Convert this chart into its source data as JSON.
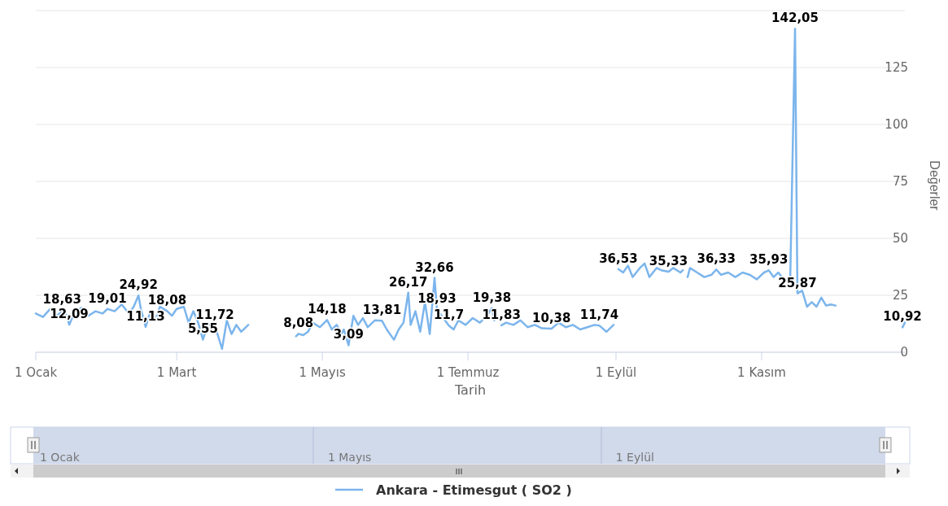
{
  "chart_data": {
    "type": "line",
    "xlabel": "Tarih",
    "ylabel": "Değerler",
    "grid": "y",
    "legend": "bottom",
    "xlim": [
      "--01-01",
      "--12-31"
    ],
    "xticks": [
      {
        "value": "--01-01",
        "label": "1 Ocak"
      },
      {
        "value": "--03-01",
        "label": "1 Mart"
      },
      {
        "value": "--05-01",
        "label": "1 Mayıs"
      },
      {
        "value": "--07-01",
        "label": "1 Temmuz"
      },
      {
        "value": "--09-01",
        "label": "1 Eylül"
      },
      {
        "value": "--11-01",
        "label": "1 Kasım"
      }
    ],
    "ylim": [
      0,
      150
    ],
    "yticks": [
      0,
      25,
      50,
      75,
      100,
      125,
      {
        "value": 150,
        "label": null
      }
    ],
    "annotations": [
      "1 Ocak",
      "1 Mayıs",
      "1 Eylül"
    ],
    "x": [
      "--01-01",
      "--01-04",
      "--01-07",
      "--01-10",
      "--01-12",
      "--01-14",
      "--01-15",
      "--01-17",
      "--01-20",
      "--01-23",
      "--01-26",
      "--01-29",
      "--01-31",
      "--02-03",
      "--02-06",
      "--02-09",
      "--02-11",
      "--02-13",
      "--02-14",
      "--02-16",
      "--02-18",
      "--02-20",
      "--02-22",
      "--02-25",
      "--02-27",
      "--03-01",
      "--03-04",
      "--03-06",
      "--03-08",
      "--03-10",
      "--03-12",
      "--03-14",
      "--03-17",
      "--03-20",
      "--03-22",
      "--03-24",
      "--03-26",
      "--03-28",
      "--03-31",
      "--04-10",
      "--04-20",
      "--04-21",
      "--04-23",
      "--04-25",
      "--04-27",
      "--04-30",
      "--05-03",
      "--05-05",
      "--05-07",
      "--05-09",
      "--05-10",
      "--05-12",
      "--05-14",
      "--05-16",
      "--05-18",
      "--05-20",
      "--05-23",
      "--05-26",
      "--05-28",
      "--05-31",
      "--06-02",
      "--06-04",
      "--06-06",
      "--06-07",
      "--06-09",
      "--06-11",
      "--06-13",
      "--06-15",
      "--06-17",
      "--06-18",
      "--06-20",
      "--06-23",
      "--06-25",
      "--06-27",
      "--06-30",
      "--07-03",
      "--07-06",
      "--07-09",
      "--07-11",
      "--07-12",
      "--07-13",
      "--07-15",
      "--07-17",
      "--07-20",
      "--07-23",
      "--07-26",
      "--07-29",
      "--08-01",
      "--08-05",
      "--08-08",
      "--08-11",
      "--08-14",
      "--08-17",
      "--08-20",
      "--08-23",
      "--08-25",
      "--08-28",
      "--08-31",
      "--09-01",
      "--09-02",
      "--09-04",
      "--09-06",
      "--09-08",
      "--09-11",
      "--09-13",
      "--09-15",
      "--09-18",
      "--09-20",
      "--09-23",
      "--09-25",
      "--09-28",
      "--09-29",
      "--09-30",
      "--10-01",
      "--10-02",
      "--10-05",
      "--10-08",
      "--10-11",
      "--10-13",
      "--10-15",
      "--10-18",
      "--10-21",
      "--10-24",
      "--10-27",
      "--10-30",
      "--11-02",
      "--11-04",
      "--11-06",
      "--11-08",
      "--11-11",
      "--11-13",
      "--11-15",
      "--11-16",
      "--11-18",
      "--11-20",
      "--11-22",
      "--11-24",
      "--11-26",
      "--11-28",
      "--11-30",
      "--12-02",
      "--12-10",
      "--12-30",
      "--12-31"
    ],
    "series": [
      {
        "name": "Ankara - Etimesgut ( SO2 )",
        "color": "#7cb5ec",
        "values": [
          17,
          15.5,
          19,
          16,
          18.63,
          16,
          12.09,
          17,
          19.5,
          16,
          18,
          17,
          19.01,
          18,
          21,
          17,
          20,
          24.92,
          19,
          11.13,
          18,
          14,
          20,
          18.08,
          16,
          19,
          20,
          13,
          18,
          13,
          5.55,
          12,
          11.72,
          1.5,
          14,
          8,
          12,
          9,
          12,
          null,
          7,
          8.08,
          7.5,
          9,
          13,
          11,
          14.18,
          10,
          12,
          8,
          10,
          3.09,
          16,
          12,
          15,
          11,
          14,
          13.81,
          10,
          5.5,
          10,
          13,
          26.17,
          12,
          18,
          9,
          22,
          8,
          32.66,
          18.93,
          16,
          11.7,
          10,
          14,
          12,
          15,
          13,
          16,
          19.38,
          14,
          null,
          11.83,
          13,
          12,
          14,
          11,
          12,
          10.5,
          10.38,
          13,
          11,
          12,
          10,
          11,
          12,
          11.74,
          9,
          12,
          null,
          36.53,
          35,
          38,
          33,
          37,
          39,
          33,
          37,
          36,
          35.33,
          37,
          35,
          36,
          null,
          33,
          37,
          35,
          33,
          34,
          36.33,
          34,
          35,
          33,
          35,
          34,
          32,
          35,
          35.93,
          33,
          35,
          31,
          33,
          142.05,
          25.87,
          27,
          20,
          22,
          20,
          24,
          20.5,
          21,
          20.5,
          null,
          10.92,
          13
        ],
        "value_labels": [
          null,
          null,
          null,
          null,
          "18,63",
          null,
          "12,09",
          null,
          null,
          null,
          null,
          null,
          "19,01",
          null,
          null,
          null,
          null,
          "24,92",
          null,
          "11,13",
          null,
          null,
          null,
          "18,08",
          null,
          null,
          null,
          null,
          null,
          null,
          "5,55",
          null,
          "11,72",
          null,
          null,
          null,
          null,
          null,
          null,
          null,
          null,
          "8,08",
          null,
          null,
          null,
          null,
          "14,18",
          null,
          null,
          null,
          null,
          "3,09",
          null,
          null,
          null,
          null,
          null,
          "13,81",
          null,
          null,
          null,
          null,
          "26,17",
          null,
          null,
          null,
          null,
          null,
          "32,66",
          "18,93",
          null,
          "11,7",
          null,
          null,
          null,
          null,
          null,
          null,
          "19,38",
          null,
          null,
          "11,83",
          null,
          null,
          null,
          null,
          null,
          null,
          "10,38",
          null,
          null,
          null,
          null,
          null,
          null,
          "11,74",
          null,
          null,
          null,
          "36,53",
          null,
          null,
          null,
          null,
          null,
          null,
          null,
          null,
          "35,33",
          null,
          null,
          null,
          null,
          null,
          null,
          null,
          null,
          null,
          "36,33",
          null,
          null,
          null,
          null,
          null,
          null,
          null,
          "35,93",
          null,
          null,
          null,
          null,
          "142,05",
          "25,87",
          null,
          null,
          null,
          null,
          null,
          null,
          null,
          null,
          null,
          "10,92",
          null
        ]
      }
    ]
  }
}
